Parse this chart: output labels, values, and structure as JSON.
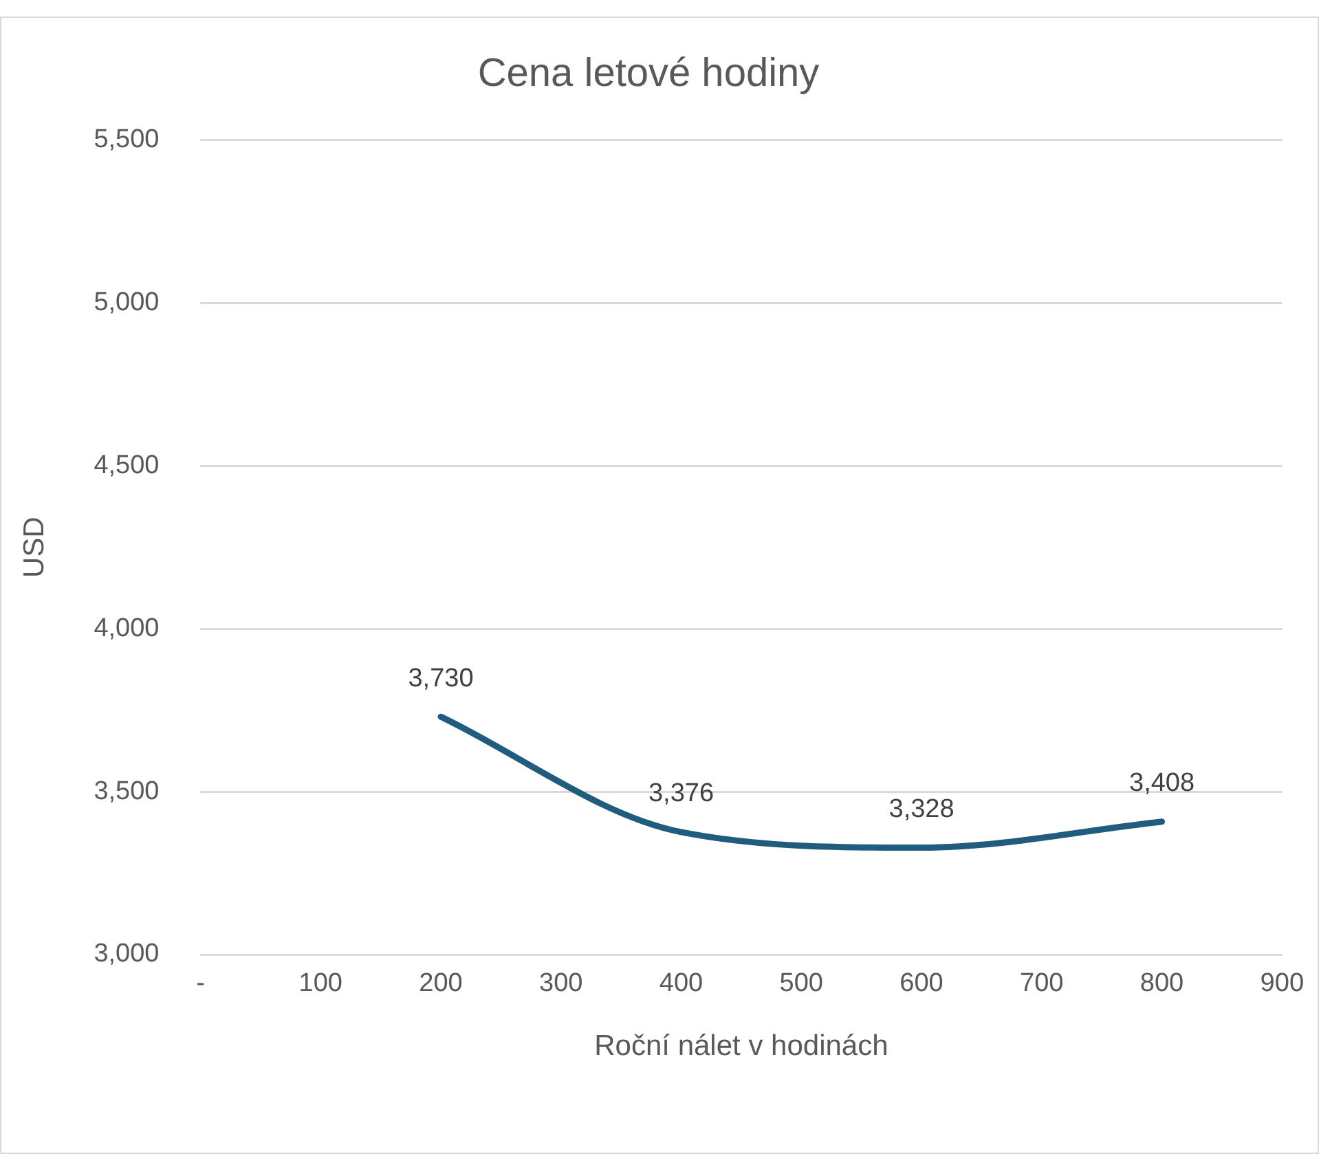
{
  "chart_data": {
    "type": "line",
    "title": "Cena letové hodiny",
    "xlabel": "Roční nálet v hodinách",
    "ylabel": "USD",
    "x": [
      200,
      400,
      600,
      800
    ],
    "series": [
      {
        "color": "#1f5c7e",
        "values": [
          3730,
          3376,
          3328,
          3408
        ],
        "value_labels": [
          "3,730",
          "3,376",
          "3,328",
          "3,408"
        ]
      }
    ],
    "xlim": [
      0,
      900
    ],
    "xticks": [
      {
        "value": 0,
        "label": "-"
      },
      100,
      200,
      300,
      400,
      500,
      600,
      700,
      800,
      900
    ],
    "ylim": [
      3000,
      5500
    ],
    "yticks": [
      {
        "value": 3000,
        "label": "3,000"
      },
      {
        "value": 3500,
        "label": "3,500"
      },
      {
        "value": 4000,
        "label": "4,000"
      },
      {
        "value": 4500,
        "label": "4,500"
      },
      {
        "value": 5000,
        "label": "5,000"
      },
      {
        "value": 5500,
        "label": "5,500"
      }
    ],
    "grid": "y",
    "legend": false,
    "marker": "none",
    "line_style": "solid"
  }
}
